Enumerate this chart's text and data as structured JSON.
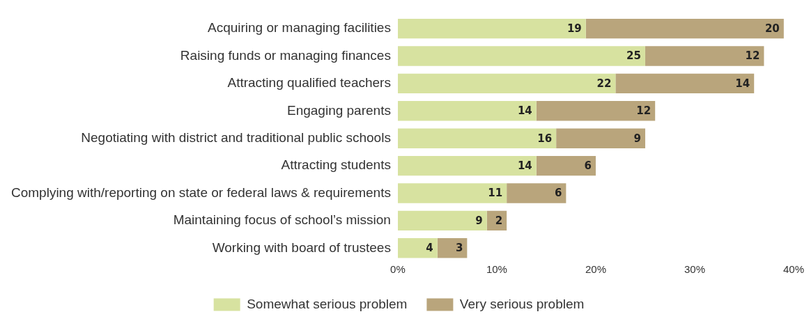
{
  "chart_data": {
    "type": "bar",
    "orientation": "horizontal",
    "stacked": true,
    "data_labels": true,
    "grid": false,
    "legend": "bottom",
    "categories": [
      "Acquiring or managing facilities",
      "Raising funds or managing finances",
      "Attracting qualified teachers",
      "Engaging parents",
      "Negotiating with district and traditional public schools",
      "Attracting students",
      "Complying with/reporting on state or federal laws & requirements",
      "Maintaining focus of school’s mission",
      "Working with board of trustees"
    ],
    "series": [
      {
        "name": "Somewhat serious problem",
        "color": "#d7e2a0",
        "values": [
          19,
          25,
          22,
          14,
          16,
          14,
          11,
          9,
          4
        ]
      },
      {
        "name": "Very serious problem",
        "color": "#b9a57c",
        "values": [
          20,
          12,
          14,
          12,
          9,
          6,
          6,
          2,
          3
        ]
      }
    ],
    "xlim": [
      0,
      40
    ],
    "xticks": [
      {
        "value": 0,
        "label": "0%"
      },
      {
        "value": 10,
        "label": "10%"
      },
      {
        "value": 20,
        "label": "20%"
      },
      {
        "value": 30,
        "label": "30%"
      },
      {
        "value": 40,
        "label": "40%"
      }
    ]
  }
}
